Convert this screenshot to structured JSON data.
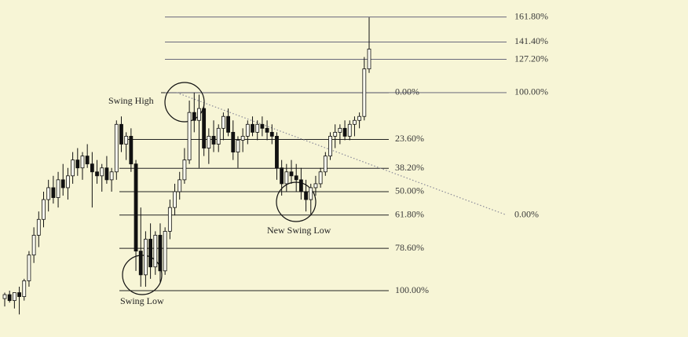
{
  "chart_data": {
    "type": "candlestick",
    "ylim": [
      -23.4,
      146.8
    ],
    "ohlc": [
      [
        -4,
        -1,
        -8,
        -2
      ],
      [
        -2,
        0,
        -6,
        -5
      ],
      [
        -5,
        -1,
        -9,
        -1
      ],
      [
        -1,
        2,
        -12,
        -3
      ],
      [
        -3,
        6,
        -5,
        5
      ],
      [
        5,
        20,
        2,
        18
      ],
      [
        18,
        32,
        14,
        28
      ],
      [
        28,
        40,
        22,
        36
      ],
      [
        36,
        50,
        32,
        46
      ],
      [
        46,
        56,
        40,
        52
      ],
      [
        52,
        58,
        44,
        47
      ],
      [
        47,
        60,
        42,
        56
      ],
      [
        56,
        64,
        48,
        52
      ],
      [
        52,
        62,
        46,
        58
      ],
      [
        58,
        70,
        54,
        66
      ],
      [
        66,
        72,
        58,
        62
      ],
      [
        62,
        70,
        56,
        68
      ],
      [
        68,
        74,
        62,
        64
      ],
      [
        64,
        70,
        42,
        60
      ],
      [
        60,
        66,
        54,
        58
      ],
      [
        58,
        64,
        50,
        62
      ],
      [
        62,
        68,
        54,
        56
      ],
      [
        56,
        62,
        50,
        60
      ],
      [
        60,
        86,
        56,
        84
      ],
      [
        84,
        88,
        70,
        74
      ],
      [
        74,
        80,
        66,
        78
      ],
      [
        78,
        82,
        60,
        64
      ],
      [
        64,
        66,
        10,
        20
      ],
      [
        20,
        42,
        2,
        8
      ],
      [
        8,
        30,
        2,
        26
      ],
      [
        26,
        34,
        6,
        12
      ],
      [
        12,
        30,
        8,
        28
      ],
      [
        28,
        34,
        4,
        10
      ],
      [
        10,
        32,
        8,
        30
      ],
      [
        30,
        46,
        26,
        42
      ],
      [
        42,
        54,
        38,
        50
      ],
      [
        50,
        60,
        46,
        56
      ],
      [
        56,
        72,
        54,
        66
      ],
      [
        66,
        96,
        64,
        90
      ],
      [
        90,
        100,
        80,
        86
      ],
      [
        86,
        99,
        62,
        92
      ],
      [
        92,
        94,
        68,
        72
      ],
      [
        72,
        82,
        64,
        78
      ],
      [
        78,
        86,
        70,
        74
      ],
      [
        74,
        84,
        70,
        82
      ],
      [
        82,
        90,
        76,
        88
      ],
      [
        88,
        92,
        78,
        80
      ],
      [
        80,
        86,
        66,
        70
      ],
      [
        70,
        78,
        62,
        76
      ],
      [
        76,
        82,
        70,
        78
      ],
      [
        78,
        86,
        74,
        84
      ],
      [
        84,
        88,
        78,
        80
      ],
      [
        80,
        86,
        76,
        84
      ],
      [
        84,
        88,
        78,
        82
      ],
      [
        82,
        86,
        76,
        80
      ],
      [
        80,
        84,
        74,
        78
      ],
      [
        78,
        80,
        56,
        62
      ],
      [
        62,
        66,
        48,
        54
      ],
      [
        54,
        64,
        50,
        60
      ],
      [
        60,
        66,
        54,
        58
      ],
      [
        58,
        64,
        50,
        56
      ],
      [
        56,
        62,
        46,
        50
      ],
      [
        50,
        56,
        40,
        46
      ],
      [
        46,
        54,
        38,
        52
      ],
      [
        52,
        58,
        48,
        54
      ],
      [
        54,
        62,
        52,
        60
      ],
      [
        60,
        70,
        58,
        68
      ],
      [
        68,
        80,
        66,
        78
      ],
      [
        78,
        84,
        72,
        80
      ],
      [
        80,
        84,
        74,
        82
      ],
      [
        82,
        86,
        76,
        78
      ],
      [
        78,
        86,
        76,
        84
      ],
      [
        84,
        88,
        78,
        86
      ],
      [
        86,
        90,
        82,
        88
      ],
      [
        88,
        118,
        86,
        112
      ],
      [
        112,
        138,
        110,
        122
      ]
    ],
    "retracement": {
      "high": 100,
      "low": 0,
      "levels": [
        {
          "value": 0,
          "label": "0.00%"
        },
        {
          "value": 23.6,
          "label": "23.60%"
        },
        {
          "value": 38.2,
          "label": "38.20%"
        },
        {
          "value": 50,
          "label": "50.00%"
        },
        {
          "value": 61.8,
          "label": "61.80%"
        },
        {
          "value": 78.6,
          "label": "78.60%"
        },
        {
          "value": 100,
          "label": "100.00%"
        }
      ]
    },
    "extension": {
      "base": 38.2,
      "top": 100,
      "levels": [
        {
          "value": 0,
          "label": "0.00%"
        },
        {
          "value": 100,
          "label": "100.00%"
        },
        {
          "value": 127.2,
          "label": "127.20%"
        },
        {
          "value": 141.4,
          "label": "141.40%"
        },
        {
          "value": 161.8,
          "label": "161.80%"
        }
      ]
    },
    "annotations": [
      "Swing High",
      "Swing Low",
      "New Swing Low"
    ]
  }
}
